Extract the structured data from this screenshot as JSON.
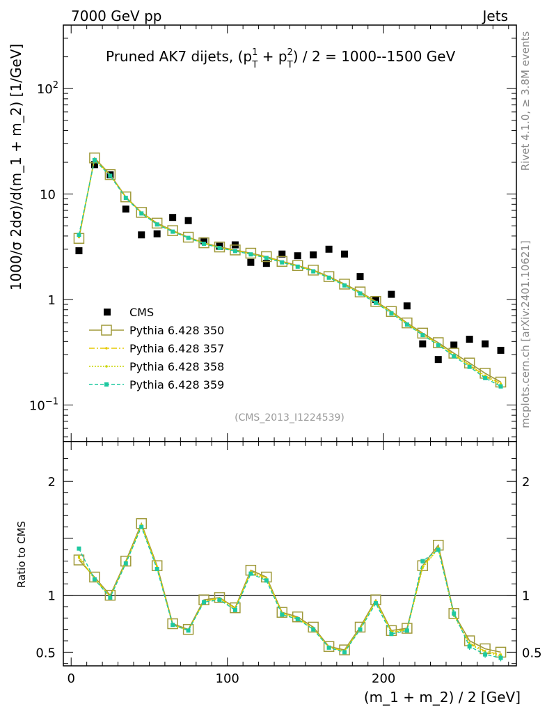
{
  "header": {
    "left": "7000 GeV pp",
    "right": "Jets"
  },
  "side_labels": {
    "rivet": "Rivet 4.1.0, ≥ 3.8M events",
    "mcplots": "mcplots.cern.ch [arXiv:2401.10621]"
  },
  "colors": {
    "cms": "#000000",
    "p350": "#a09a3a",
    "p357": "#e6c800",
    "p358": "#c8d400",
    "p359": "#1ec8a0",
    "watermark": "#999999"
  },
  "chart_data": [
    {
      "type": "scatter",
      "panel": "main",
      "title": "Pruned AK7 dijets, (p",
      "title_parts": {
        "pre": "Pruned AK7 dijets, (p",
        "sup1": "1",
        "sub1": "T",
        "mid": " + p",
        "sup2": "2",
        "sub2": "T",
        "post": ") / 2 = 1000--1500 GeV"
      },
      "ylabel": "1000/σ   2dσ)/d(m_1 + m_2) [1/GeV]",
      "yscale": "log",
      "xlim": [
        -5,
        285
      ],
      "ylim": [
        0.045,
        400
      ],
      "yticks": [
        {
          "v": 0.1,
          "label": "10",
          "exp": "−1"
        },
        {
          "v": 1,
          "label": "1",
          "exp": ""
        },
        {
          "v": 10,
          "label": "10",
          "exp": ""
        },
        {
          "v": 100,
          "label": "10",
          "exp": "2"
        }
      ],
      "watermark": "(CMS_2013_I1224539)",
      "legend_position": "center-left",
      "x": [
        5,
        15,
        25,
        35,
        45,
        55,
        65,
        75,
        85,
        95,
        105,
        115,
        125,
        135,
        145,
        155,
        165,
        175,
        185,
        195,
        205,
        215,
        225,
        235,
        245,
        255,
        265,
        275
      ],
      "series": [
        {
          "name": "CMS",
          "style": "square",
          "values": [
            2.9,
            19.0,
            15.2,
            7.2,
            4.1,
            4.2,
            6.0,
            5.6,
            3.6,
            3.2,
            3.3,
            2.25,
            2.2,
            2.7,
            2.6,
            2.65,
            3.0,
            2.7,
            1.65,
            1.0,
            1.12,
            0.87,
            0.38,
            0.27,
            0.37,
            0.42,
            0.38,
            0.33
          ]
        },
        {
          "name": "Pythia 6.428 350",
          "style": "open-square-solid",
          "values": [
            3.8,
            22.0,
            15.3,
            9.4,
            6.7,
            5.3,
            4.5,
            3.9,
            3.45,
            3.15,
            2.95,
            2.75,
            2.55,
            2.3,
            2.1,
            1.9,
            1.65,
            1.4,
            1.18,
            0.96,
            0.77,
            0.6,
            0.48,
            0.39,
            0.31,
            0.25,
            0.2,
            0.165
          ]
        },
        {
          "name": "Pythia 6.428 357",
          "style": "dashdot",
          "values": [
            3.9,
            21.5,
            15.1,
            9.3,
            6.65,
            5.25,
            4.45,
            3.88,
            3.42,
            3.12,
            2.92,
            2.72,
            2.52,
            2.28,
            2.08,
            1.88,
            1.63,
            1.38,
            1.16,
            0.95,
            0.76,
            0.59,
            0.47,
            0.38,
            0.3,
            0.24,
            0.19,
            0.16
          ]
        },
        {
          "name": "Pythia 6.428 358",
          "style": "dotted",
          "values": [
            3.95,
            21.3,
            15.0,
            9.25,
            6.6,
            5.2,
            4.42,
            3.86,
            3.4,
            3.1,
            2.9,
            2.7,
            2.5,
            2.27,
            2.06,
            1.87,
            1.62,
            1.37,
            1.15,
            0.94,
            0.75,
            0.585,
            0.465,
            0.375,
            0.295,
            0.235,
            0.185,
            0.155
          ]
        },
        {
          "name": "Pythia 6.428 359",
          "style": "dashed",
          "values": [
            4.1,
            21.0,
            14.9,
            9.2,
            6.55,
            5.15,
            4.4,
            3.84,
            3.38,
            3.08,
            2.88,
            2.68,
            2.48,
            2.25,
            2.05,
            1.85,
            1.61,
            1.36,
            1.14,
            0.93,
            0.74,
            0.58,
            0.46,
            0.37,
            0.29,
            0.23,
            0.18,
            0.15
          ]
        }
      ]
    },
    {
      "type": "line",
      "panel": "ratio",
      "ylabel": "Ratio to CMS",
      "xlabel": "(m_1 + m_2) / 2 [GeV]",
      "ylim": [
        0.38,
        2.35
      ],
      "yticks": [
        0.5,
        1,
        2
      ],
      "ytick_labels": [
        "0.5",
        "1",
        "2"
      ],
      "xticks": [
        0,
        100,
        200
      ],
      "xtick_labels": [
        "0",
        "100",
        "200"
      ],
      "reference": 1,
      "x": [
        5,
        15,
        25,
        35,
        45,
        55,
        65,
        75,
        85,
        95,
        105,
        115,
        125,
        135,
        145,
        155,
        165,
        175,
        185,
        195,
        205,
        215,
        225,
        235,
        245,
        255,
        265,
        275
      ],
      "series": [
        {
          "name": "Pythia 6.428 350",
          "values": [
            1.31,
            1.16,
            1.0,
            1.3,
            1.63,
            1.26,
            0.75,
            0.7,
            0.96,
            0.98,
            0.89,
            1.22,
            1.16,
            0.85,
            0.81,
            0.72,
            0.55,
            0.52,
            0.72,
            0.96,
            0.69,
            0.71,
            1.26,
            1.44,
            0.84,
            0.6,
            0.53,
            0.5
          ]
        },
        {
          "name": "Pythia 6.428 357",
          "values": [
            1.33,
            1.15,
            0.99,
            1.29,
            1.62,
            1.25,
            0.74,
            0.69,
            0.95,
            0.975,
            0.885,
            1.21,
            1.15,
            0.845,
            0.8,
            0.71,
            0.545,
            0.51,
            0.71,
            0.95,
            0.68,
            0.7,
            1.25,
            1.42,
            0.83,
            0.58,
            0.51,
            0.48
          ]
        },
        {
          "name": "Pythia 6.428 358",
          "values": [
            1.34,
            1.14,
            0.99,
            1.28,
            1.61,
            1.24,
            0.74,
            0.69,
            0.945,
            0.97,
            0.88,
            1.2,
            1.14,
            0.84,
            0.795,
            0.705,
            0.54,
            0.51,
            0.705,
            0.945,
            0.675,
            0.695,
            1.24,
            1.41,
            0.82,
            0.57,
            0.5,
            0.47
          ]
        },
        {
          "name": "Pythia 6.428 359",
          "values": [
            1.41,
            1.14,
            0.98,
            1.28,
            1.6,
            1.23,
            0.74,
            0.69,
            0.94,
            0.96,
            0.87,
            1.19,
            1.13,
            0.83,
            0.79,
            0.7,
            0.54,
            0.5,
            0.7,
            0.93,
            0.66,
            0.69,
            1.3,
            1.4,
            0.84,
            0.55,
            0.48,
            0.45
          ]
        }
      ]
    }
  ]
}
